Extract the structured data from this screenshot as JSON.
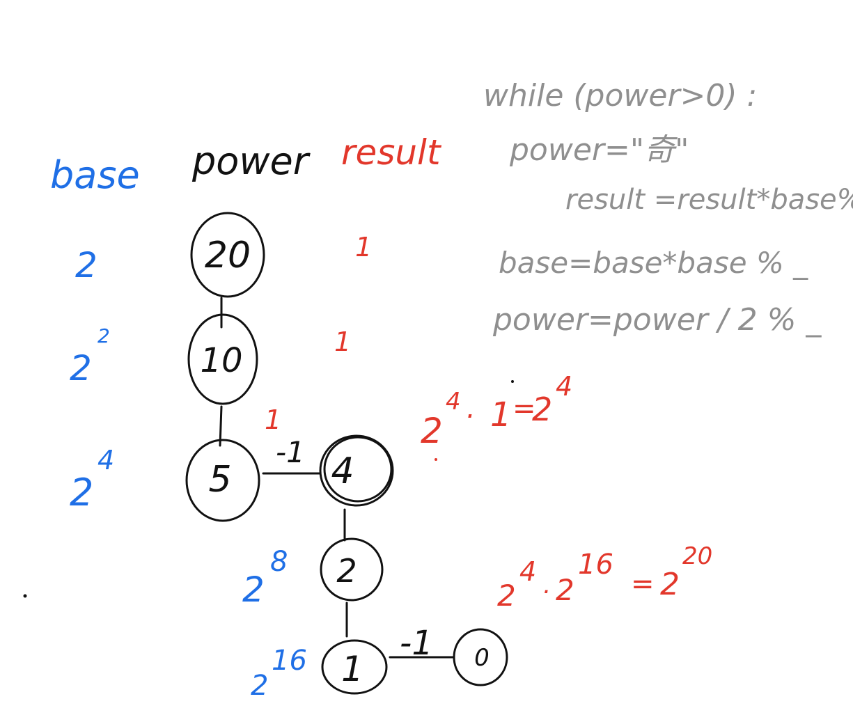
{
  "headers": {
    "base": "base",
    "power": "power",
    "result": "result"
  },
  "base_column": [
    {
      "base": "2",
      "exp": ""
    },
    {
      "base": "2",
      "exp": "2"
    },
    {
      "base": "2",
      "exp": "4"
    },
    {
      "base": "2",
      "exp": "8"
    },
    {
      "base": "2",
      "exp": "16"
    }
  ],
  "power_nodes": [
    "20",
    "10",
    "5",
    "4",
    "2",
    "1",
    "0"
  ],
  "result_column": [
    "1",
    "1",
    "1"
  ],
  "edge_labels": [
    "-1",
    "-1"
  ],
  "equations": {
    "eq1": {
      "a_base": "2",
      "a_exp": "4",
      "dot": ".",
      "b": "1",
      "eq": "=",
      "r_base": "2",
      "r_exp": "4"
    },
    "eq2": {
      "a_base": "2",
      "a_exp": "4",
      "dot": ".",
      "b_base": "2",
      "b_exp": "16",
      "eq": "=",
      "r_base": "2",
      "r_exp": "20"
    }
  },
  "pseudocode": {
    "line1": "while (power>0) :",
    "line2": "power=\"奇\"",
    "line3": "result =result*base%",
    "line4": "base=base*base % _",
    "line5": "power=power / 2 % _"
  },
  "colors": {
    "base": "#1f6fe6",
    "result": "#e2372b",
    "code": "#8f8f8f",
    "tree": "#111111"
  }
}
